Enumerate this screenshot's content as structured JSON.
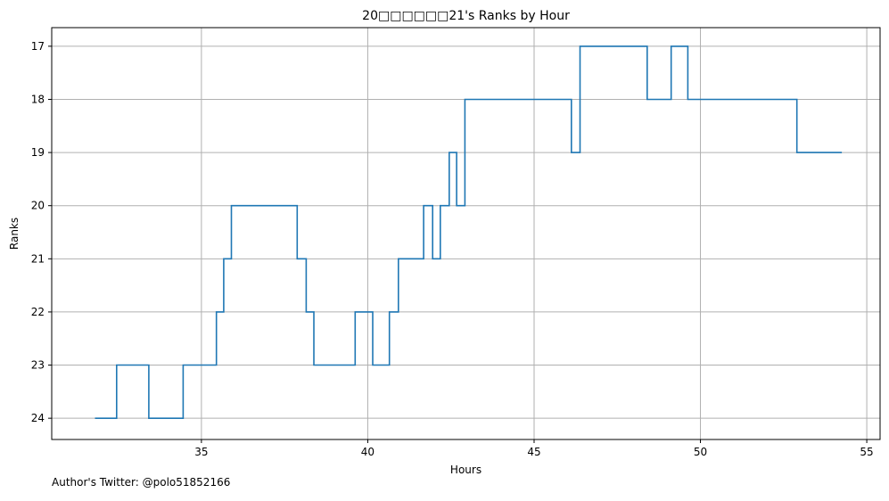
{
  "chart_data": {
    "type": "line",
    "title": "20□□□□□□21's Ranks by Hour",
    "xlabel": "Hours",
    "ylabel": "Ranks",
    "xlim": [
      30.5,
      55.4
    ],
    "ylim": [
      24.4,
      16.65
    ],
    "y_inverted": true,
    "grid": true,
    "line_style": "steps-post",
    "color": "#1f77b4",
    "xticks": [
      35,
      40,
      45,
      50,
      55
    ],
    "yticks": [
      17,
      18,
      19,
      20,
      21,
      22,
      23,
      24
    ],
    "x": [
      31.8,
      32.45,
      33.42,
      34.45,
      35.45,
      35.67,
      35.9,
      37.88,
      38.15,
      38.38,
      39.62,
      40.15,
      40.65,
      40.92,
      41.68,
      41.95,
      42.18,
      42.45,
      42.67,
      42.92,
      46.12,
      46.38,
      48.4,
      49.12,
      49.62,
      52.9,
      54.25
    ],
    "y": [
      24,
      23,
      24,
      23,
      22,
      21,
      20,
      21,
      22,
      23,
      22,
      23,
      22,
      21,
      20,
      21,
      20,
      19,
      20,
      18,
      19,
      17,
      18,
      17,
      18,
      19,
      19
    ]
  },
  "footer": {
    "text": "Author's Twitter: @polo51852166"
  }
}
